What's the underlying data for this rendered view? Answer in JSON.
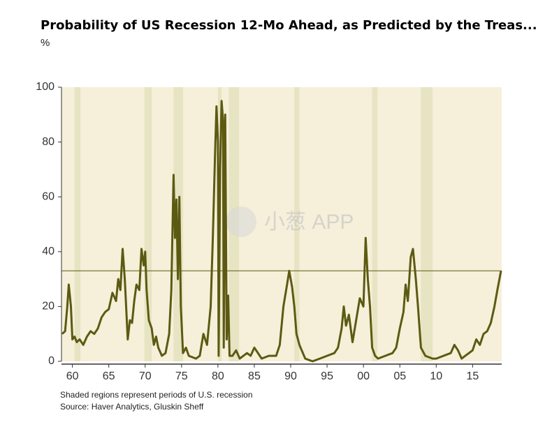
{
  "chart_data": {
    "type": "line",
    "title": "Probability of US Recession 12-Mo Ahead, as Predicted by the Treas...",
    "unit_label": "%",
    "notes": [
      "Shaded regions represent periods of U.S. recession",
      "Source: Haver Analytics, Gluskin Sheff"
    ],
    "watermark": "小葱 APP",
    "xlim": [
      1958.5,
      2019
    ],
    "ylim": [
      0,
      100
    ],
    "yticks": [
      0,
      20,
      40,
      60,
      80,
      100
    ],
    "xticks": [
      {
        "value": 1960,
        "label": "60"
      },
      {
        "value": 1965,
        "label": "65"
      },
      {
        "value": 1970,
        "label": "70"
      },
      {
        "value": 1975,
        "label": "75"
      },
      {
        "value": 1980,
        "label": "80"
      },
      {
        "value": 1985,
        "label": "85"
      },
      {
        "value": 1990,
        "label": "90"
      },
      {
        "value": 1995,
        "label": "95"
      },
      {
        "value": 2000,
        "label": "00"
      },
      {
        "value": 2005,
        "label": "05"
      },
      {
        "value": 2010,
        "label": "10"
      },
      {
        "value": 2015,
        "label": "15"
      }
    ],
    "reference_line": 33,
    "background_color": "#f6efd9",
    "recession_color": "#e6e4c2",
    "recessions": [
      [
        1960.3,
        1961.1
      ],
      [
        1969.9,
        1970.9
      ],
      [
        1973.9,
        1975.2
      ],
      [
        1980.0,
        1980.5
      ],
      [
        1981.5,
        1982.9
      ],
      [
        1990.5,
        1991.2
      ],
      [
        2001.2,
        2001.9
      ],
      [
        2007.9,
        2009.5
      ]
    ],
    "series": [
      {
        "color": "#5c5a12",
        "x": [
          1958.6,
          1959.0,
          1959.3,
          1959.5,
          1959.8,
          1960.0,
          1960.3,
          1960.6,
          1961.0,
          1961.5,
          1962.0,
          1962.5,
          1963.0,
          1963.5,
          1964.0,
          1964.5,
          1965.0,
          1965.5,
          1966.0,
          1966.3,
          1966.6,
          1966.9,
          1967.2,
          1967.6,
          1967.9,
          1968.2,
          1968.5,
          1968.8,
          1969.2,
          1969.5,
          1969.8,
          1970.0,
          1970.2,
          1970.5,
          1970.9,
          1971.2,
          1971.5,
          1971.8,
          1972.3,
          1972.8,
          1973.3,
          1973.6,
          1973.9,
          1974.1,
          1974.3,
          1974.5,
          1974.7,
          1974.9,
          1975.2,
          1975.6,
          1976.0,
          1977.0,
          1977.5,
          1978.0,
          1978.5,
          1979.0,
          1979.3,
          1979.6,
          1979.8,
          1980.0,
          1980.1,
          1980.3,
          1980.5,
          1980.7,
          1980.8,
          1981.0,
          1981.2,
          1981.4,
          1981.6,
          1982.0,
          1982.5,
          1983.0,
          1984.0,
          1984.5,
          1985.0,
          1985.5,
          1986.0,
          1987.0,
          1988.0,
          1988.5,
          1989.0,
          1989.5,
          1989.8,
          1990.2,
          1990.5,
          1990.8,
          1991.2,
          1992.0,
          1993.0,
          1994.0,
          1995.0,
          1996.0,
          1996.5,
          1997.0,
          1997.3,
          1997.6,
          1998.0,
          1998.5,
          1999.0,
          1999.5,
          2000.0,
          2000.3,
          2000.6,
          2000.9,
          2001.2,
          2001.6,
          2002.0,
          2003.0,
          2004.0,
          2004.5,
          2005.0,
          2005.5,
          2005.8,
          2006.1,
          2006.5,
          2006.8,
          2007.2,
          2007.5,
          2007.9,
          2008.5,
          2009.5,
          2010.0,
          2011.0,
          2012.0,
          2012.5,
          2013.0,
          2013.5,
          2014.0,
          2015.0,
          2015.5,
          2016.0,
          2016.5,
          2017.0,
          2017.5,
          2018.0,
          2018.4,
          2018.9
        ],
        "values": [
          10,
          11,
          20,
          28,
          20,
          8,
          9,
          7,
          8,
          6,
          9,
          11,
          10,
          12,
          16,
          18,
          19,
          25,
          22,
          30,
          26,
          41,
          30,
          8,
          15,
          14,
          22,
          28,
          26,
          41,
          35,
          40,
          26,
          15,
          12,
          6,
          9,
          5,
          2,
          3,
          10,
          26,
          68,
          45,
          59,
          30,
          60,
          20,
          3,
          5,
          2,
          1,
          2,
          10,
          6,
          20,
          45,
          75,
          93,
          80,
          2,
          70,
          95,
          88,
          5,
          90,
          8,
          24,
          2,
          2,
          4,
          1,
          3,
          2,
          5,
          3,
          1,
          2,
          2,
          6,
          20,
          28,
          33,
          27,
          20,
          10,
          6,
          1,
          0,
          1,
          2,
          3,
          5,
          12,
          20,
          13,
          17,
          7,
          15,
          23,
          20,
          45,
          30,
          20,
          5,
          2,
          1,
          2,
          3,
          5,
          12,
          18,
          28,
          22,
          38,
          41,
          30,
          20,
          5,
          2,
          1,
          1,
          2,
          3,
          6,
          4,
          1,
          2,
          4,
          8,
          6,
          10,
          11,
          14,
          20,
          26,
          33
        ]
      }
    ]
  }
}
